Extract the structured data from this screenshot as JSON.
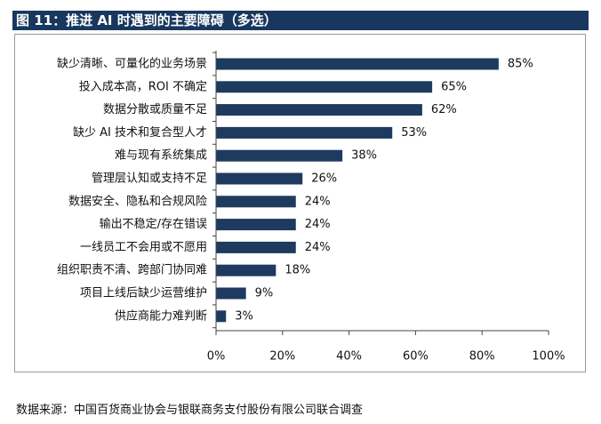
{
  "figure": {
    "title": "图 11：推进 AI 时遇到的主要障碍（多选）",
    "source": "数据来源：中国百货商业协会与银联商务支付股份有限公司联合调查",
    "colors": {
      "title_bg": "#17375e",
      "bar": "#1f3a5f",
      "frame": "#9a9a9a"
    }
  },
  "chart_data": {
    "type": "bar",
    "orientation": "horizontal",
    "title": "",
    "xlabel": "",
    "ylabel": "",
    "xlim": [
      0,
      100
    ],
    "x_ticks": [
      0,
      20,
      40,
      60,
      80,
      100
    ],
    "x_tick_labels": [
      "0%",
      "20%",
      "40%",
      "60%",
      "80%",
      "100%"
    ],
    "grid": false,
    "legend": "none",
    "categories": [
      "缺少清晰、可量化的业务场景",
      "投入成本高，ROI 不确定",
      "数据分散或质量不足",
      "缺少 AI 技术和复合型人才",
      "难与现有系统集成",
      "管理层认知或支持不足",
      "数据安全、隐私和合规风险",
      "输出不稳定/存在错误",
      "一线员工不会用或不愿用",
      "组织职责不清、跨部门协同难",
      "项目上线后缺少运营维护",
      "供应商能力难判断"
    ],
    "values": [
      85,
      65,
      62,
      53,
      38,
      26,
      24,
      24,
      24,
      18,
      9,
      3
    ],
    "value_labels": [
      "85%",
      "65%",
      "62%",
      "53%",
      "38%",
      "26%",
      "24%",
      "24%",
      "24%",
      "18%",
      "9%",
      "3%"
    ]
  }
}
